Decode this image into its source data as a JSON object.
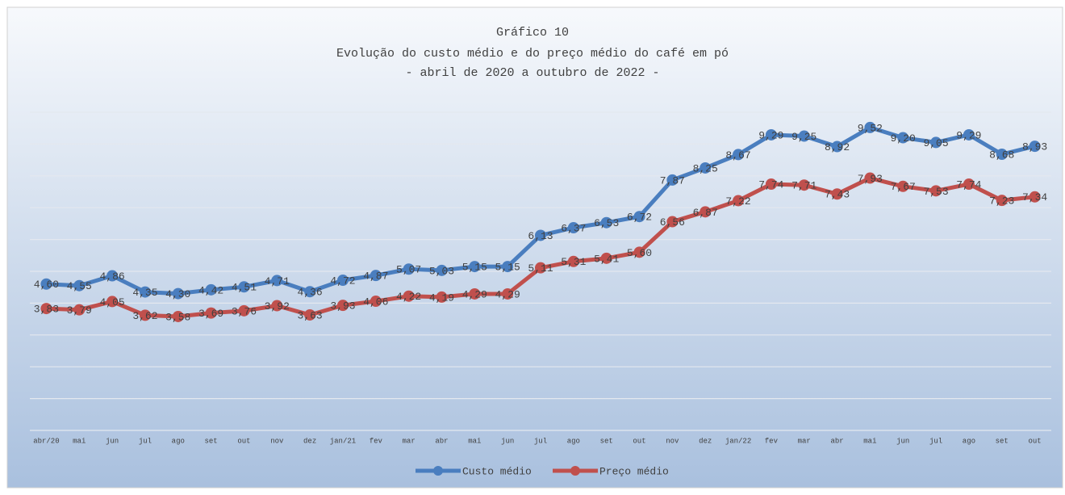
{
  "chart_data": {
    "type": "line",
    "title": "Gráfico 10",
    "subtitle": [
      "Evolução do custo médio e do preço médio do café em pó",
      "- abril de 2020 a outubro de 2022 -"
    ],
    "categories": [
      "abr/20",
      "mai",
      "jun",
      "jul",
      "ago",
      "set",
      "out",
      "nov",
      "dez",
      "jan/21",
      "fev",
      "mar",
      "abr",
      "mai",
      "jun",
      "jul",
      "ago",
      "set",
      "out",
      "nov",
      "dez",
      "jan/22",
      "fev",
      "mar",
      "abr",
      "mai",
      "jun",
      "jul",
      "ago",
      "set",
      "out"
    ],
    "series": [
      {
        "name": "Custo médio",
        "color": "#4a7ebf",
        "values": [
          4.6,
          4.55,
          4.86,
          4.35,
          4.3,
          4.42,
          4.51,
          4.71,
          4.36,
          4.72,
          4.87,
          5.07,
          5.03,
          5.15,
          5.15,
          6.13,
          6.37,
          6.53,
          6.72,
          7.87,
          8.25,
          8.67,
          9.29,
          9.25,
          8.92,
          9.52,
          9.2,
          9.05,
          9.29,
          8.68,
          8.93
        ],
        "value_labels": [
          "4,60",
          "4,55",
          "4,86",
          "4,35",
          "4,30",
          "4,42",
          "4,51",
          "4,71",
          "4,36",
          "4,72",
          "4,87",
          "5,07",
          "5,03",
          "5,15",
          "5,15",
          "6,13",
          "6,37",
          "6,53",
          "6,72",
          "7,87",
          "8,25",
          "8,67",
          "9,29",
          "9,25",
          "8,92",
          "9,52",
          "9,20",
          "9,05",
          "9,29",
          "8,68",
          "8,93"
        ]
      },
      {
        "name": "Preço médio",
        "color": "#c0504d",
        "values": [
          3.83,
          3.79,
          4.05,
          3.62,
          3.58,
          3.69,
          3.76,
          3.92,
          3.63,
          3.93,
          4.06,
          4.22,
          4.19,
          4.29,
          4.29,
          5.11,
          5.31,
          5.41,
          5.6,
          6.56,
          6.87,
          7.22,
          7.74,
          7.71,
          7.43,
          7.93,
          7.67,
          7.53,
          7.74,
          7.23,
          7.34
        ],
        "value_labels": [
          "3,83",
          "3,79",
          "4,05",
          "3,62",
          "3,58",
          "3,69",
          "3,76",
          "3,92",
          "3,63",
          "3,93",
          "4,06",
          "4,22",
          "4,19",
          "4,29",
          "4,29",
          "5,11",
          "5,31",
          "5,41",
          "5,60",
          "6,56",
          "6,87",
          "7,22",
          "7,74",
          "7,71",
          "7,43",
          "7,93",
          "7,67",
          "7,53",
          "7,74",
          "7,23",
          "7,34"
        ]
      }
    ],
    "ylim": [
      0,
      10
    ],
    "yticks": [
      0,
      1,
      2,
      3,
      4,
      5,
      6,
      7,
      8,
      9,
      10
    ],
    "grid": true,
    "legend": "bottom"
  }
}
